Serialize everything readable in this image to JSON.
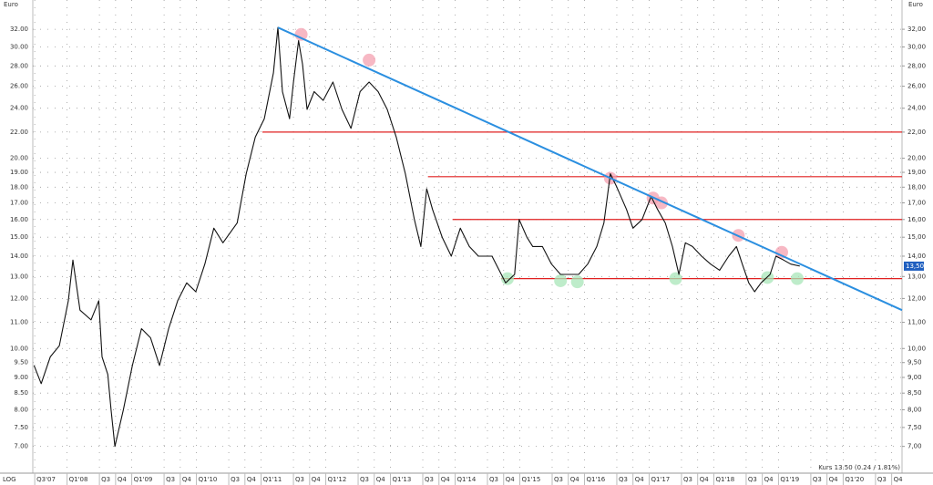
{
  "chart_data": {
    "type": "line",
    "axis_unit": "Euro",
    "scale_label": "LOG",
    "log_scale": true,
    "grid": true,
    "quote_text": "Kurs 13.50 (0.24 / 1.81%)",
    "last_label": "13,50",
    "last_label_color": "#1f5fbf",
    "x": [
      2007.49,
      2007.6,
      2007.74,
      2007.88,
      2008.02,
      2008.09,
      2008.2,
      2008.37,
      2008.49,
      2008.54,
      2008.63,
      2008.68,
      2008.74,
      2008.87,
      2009.01,
      2009.15,
      2009.29,
      2009.43,
      2009.57,
      2009.71,
      2009.85,
      2009.99,
      2010.13,
      2010.27,
      2010.41,
      2010.63,
      2010.77,
      2010.91,
      2011.05,
      2011.19,
      2011.26,
      2011.33,
      2011.44,
      2011.5,
      2011.58,
      2011.64,
      2011.71,
      2011.82,
      2011.96,
      2012.11,
      2012.25,
      2012.39,
      2012.53,
      2012.67,
      2012.81,
      2012.95,
      2013.09,
      2013.23,
      2013.37,
      2013.47,
      2013.56,
      2013.65,
      2013.8,
      2013.94,
      2014.08,
      2014.22,
      2014.36,
      2014.57,
      2014.78,
      2014.92,
      2014.99,
      2015.11,
      2015.2,
      2015.35,
      2015.49,
      2015.63,
      2015.77,
      2015.91,
      2016.05,
      2016.19,
      2016.3,
      2016.4,
      2016.5,
      2016.65,
      2016.75,
      2016.89,
      2017.03,
      2017.13,
      2017.25,
      2017.36,
      2017.46,
      2017.56,
      2017.67,
      2017.81,
      2017.95,
      2018.09,
      2018.23,
      2018.35,
      2018.44,
      2018.54,
      2018.63,
      2018.73,
      2018.87,
      2018.96,
      2019.08,
      2019.19,
      2019.33
    ],
    "series": [
      {
        "name": "Kurs",
        "color": "#111111",
        "values": [
          9.4,
          8.8,
          9.7,
          10.1,
          11.9,
          13.8,
          11.5,
          11.1,
          11.9,
          9.7,
          9.1,
          8.0,
          7.0,
          8.0,
          9.4,
          10.75,
          10.4,
          9.4,
          10.75,
          11.9,
          12.7,
          12.3,
          13.6,
          15.5,
          14.7,
          15.8,
          18.9,
          21.6,
          23.1,
          27.3,
          32.2,
          25.5,
          23.1,
          26.4,
          30.7,
          28.2,
          23.9,
          25.5,
          24.7,
          26.4,
          23.9,
          22.3,
          25.5,
          26.4,
          25.5,
          23.9,
          21.6,
          18.9,
          16.0,
          14.5,
          17.9,
          16.6,
          15.0,
          14.0,
          15.5,
          14.5,
          14.0,
          14.0,
          12.7,
          13.1,
          16.0,
          15.0,
          14.5,
          14.5,
          13.6,
          13.1,
          13.1,
          13.1,
          13.6,
          14.5,
          15.8,
          18.9,
          18.0,
          16.6,
          15.5,
          16.0,
          17.4,
          16.6,
          15.8,
          14.5,
          13.1,
          14.7,
          14.5,
          14.0,
          13.6,
          13.3,
          14.0,
          14.5,
          13.6,
          12.7,
          12.3,
          12.7,
          13.1,
          14.0,
          13.8,
          13.6,
          13.5
        ]
      }
    ],
    "trendline": {
      "color": "#2b8fe0",
      "x": [
        2011.26,
        2020.91
      ],
      "values": [
        32.2,
        11.5
      ]
    },
    "levels": {
      "color": "#e02020",
      "values": [
        22.0,
        18.7,
        16.0,
        12.9
      ],
      "from": [
        2011.02,
        2013.58,
        2013.96,
        2014.71
      ]
    },
    "resistance_touches": {
      "color": "#f4a0b0",
      "x": [
        2011.62,
        2012.67,
        2016.4,
        2017.06,
        2017.19,
        2018.38,
        2019.05
      ],
      "values": [
        31.4,
        28.6,
        18.6,
        17.3,
        17.0,
        15.1,
        14.2
      ]
    },
    "support_touches": {
      "color": "#a8e6b8",
      "x": [
        2014.81,
        2015.63,
        2015.89,
        2017.41,
        2018.83,
        2019.29
      ],
      "values": [
        12.9,
        12.8,
        12.75,
        12.9,
        12.95,
        12.9
      ]
    },
    "xlim": [
      2007.47,
      2020.91
    ],
    "xticks": [
      {
        "value": 2007.5,
        "label": "Q3'07"
      },
      {
        "value": 2008.0,
        "label": "Q1'08"
      },
      {
        "value": 2008.5,
        "label": "Q3"
      },
      {
        "value": 2008.75,
        "label": "Q4"
      },
      {
        "value": 2009.0,
        "label": "Q1'09"
      },
      {
        "value": 2009.5,
        "label": "Q3"
      },
      {
        "value": 2009.75,
        "label": "Q4"
      },
      {
        "value": 2010.0,
        "label": "Q1'10"
      },
      {
        "value": 2010.5,
        "label": "Q3"
      },
      {
        "value": 2010.75,
        "label": "Q4"
      },
      {
        "value": 2011.0,
        "label": "Q1'11"
      },
      {
        "value": 2011.5,
        "label": "Q3"
      },
      {
        "value": 2011.75,
        "label": "Q4"
      },
      {
        "value": 2012.0,
        "label": "Q1'12"
      },
      {
        "value": 2012.5,
        "label": "Q3"
      },
      {
        "value": 2012.75,
        "label": "Q4"
      },
      {
        "value": 2013.0,
        "label": "Q1'13"
      },
      {
        "value": 2013.5,
        "label": "Q3"
      },
      {
        "value": 2013.75,
        "label": "Q4"
      },
      {
        "value": 2014.0,
        "label": "Q1'14"
      },
      {
        "value": 2014.5,
        "label": "Q3"
      },
      {
        "value": 2014.75,
        "label": "Q4"
      },
      {
        "value": 2015.0,
        "label": "Q1'15"
      },
      {
        "value": 2015.5,
        "label": "Q3"
      },
      {
        "value": 2015.75,
        "label": "Q4"
      },
      {
        "value": 2016.0,
        "label": "Q1'16"
      },
      {
        "value": 2016.5,
        "label": "Q3"
      },
      {
        "value": 2016.75,
        "label": "Q4"
      },
      {
        "value": 2017.0,
        "label": "Q1'17"
      },
      {
        "value": 2017.5,
        "label": "Q3"
      },
      {
        "value": 2017.75,
        "label": "Q4"
      },
      {
        "value": 2018.0,
        "label": "Q1'18"
      },
      {
        "value": 2018.5,
        "label": "Q3"
      },
      {
        "value": 2018.75,
        "label": "Q4"
      },
      {
        "value": 2019.0,
        "label": "Q1'19"
      },
      {
        "value": 2019.5,
        "label": "Q3"
      },
      {
        "value": 2019.75,
        "label": "Q4"
      },
      {
        "value": 2020.0,
        "label": "Q1'20"
      },
      {
        "value": 2020.5,
        "label": "Q3"
      },
      {
        "value": 2020.75,
        "label": "Q4"
      }
    ],
    "ylim": [
      6.35,
      35.6
    ],
    "yticks": [
      {
        "value": 7,
        "label": "7.00"
      },
      {
        "value": 7.5,
        "label": "7.50"
      },
      {
        "value": 8,
        "label": "8.00"
      },
      {
        "value": 8.5,
        "label": "8.50"
      },
      {
        "value": 9,
        "label": "9.00"
      },
      {
        "value": 9.5,
        "label": "9.50"
      },
      {
        "value": 10,
        "label": "10.00"
      },
      {
        "value": 11,
        "label": "11.00"
      },
      {
        "value": 12,
        "label": "12.00"
      },
      {
        "value": 13,
        "label": "13.00"
      },
      {
        "value": 14,
        "label": "14.00"
      },
      {
        "value": 15,
        "label": "15.00"
      },
      {
        "value": 16,
        "label": "16.00"
      },
      {
        "value": 17,
        "label": "17.00"
      },
      {
        "value": 18,
        "label": "18.00"
      },
      {
        "value": 19,
        "label": "19.00"
      },
      {
        "value": 20,
        "label": "20.00"
      },
      {
        "value": 22,
        "label": "22.00"
      },
      {
        "value": 24,
        "label": "24.00"
      },
      {
        "value": 26,
        "label": "26.00"
      },
      {
        "value": 28,
        "label": "28.00"
      },
      {
        "value": 30,
        "label": "30.00"
      },
      {
        "value": 32,
        "label": "32.00"
      }
    ],
    "y2lim": [
      6.35,
      35.6
    ],
    "y2ticks": [
      {
        "value": 7,
        "label": "7,00"
      },
      {
        "value": 7.5,
        "label": "7,50"
      },
      {
        "value": 8,
        "label": "8,00"
      },
      {
        "value": 8.5,
        "label": "8,50"
      },
      {
        "value": 9,
        "label": "9,00"
      },
      {
        "value": 9.5,
        "label": "9,50"
      },
      {
        "value": 10,
        "label": "10,00"
      },
      {
        "value": 11,
        "label": "11,00"
      },
      {
        "value": 12,
        "label": "12,00"
      },
      {
        "value": 13,
        "label": "13,00"
      },
      {
        "value": 14,
        "label": "14,00"
      },
      {
        "value": 15,
        "label": "15,00"
      },
      {
        "value": 16,
        "label": "16,00"
      },
      {
        "value": 17,
        "label": "17,00"
      },
      {
        "value": 18,
        "label": "18,00"
      },
      {
        "value": 19,
        "label": "19,00"
      },
      {
        "value": 20,
        "label": "20,00"
      },
      {
        "value": 22,
        "label": "22,00"
      },
      {
        "value": 24,
        "label": "24,00"
      },
      {
        "value": 26,
        "label": "26,00"
      },
      {
        "value": 28,
        "label": "28,00"
      },
      {
        "value": 30,
        "label": "30,00"
      },
      {
        "value": 32,
        "label": "32,00"
      }
    ]
  }
}
